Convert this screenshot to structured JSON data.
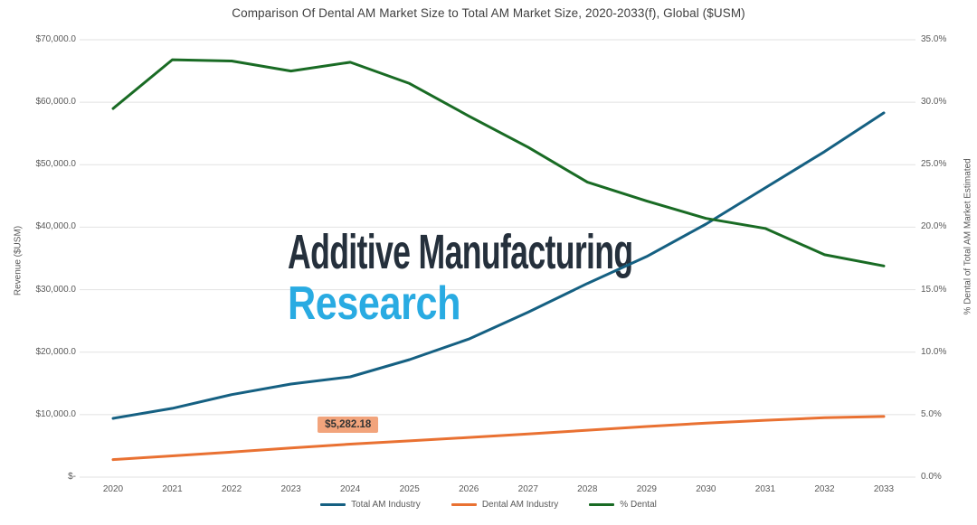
{
  "title": "Comparison Of Dental AM Market Size to Total AM Market Size, 2020-2033(f), Global ($USM)",
  "left_axis": {
    "title": "Revenue ($USM)",
    "ticks": [
      "$70,000.0",
      "$60,000.0",
      "$50,000.0",
      "$40,000.0",
      "$30,000.0",
      "$20,000.0",
      "$10,000.0",
      "$-"
    ]
  },
  "right_axis": {
    "title": "% Dental of Total AM Market Estimated",
    "ticks": [
      "35.0%",
      "30.0%",
      "25.0%",
      "20.0%",
      "15.0%",
      "10.0%",
      "5.0%",
      "0.0%"
    ]
  },
  "x_axis": {
    "labels": [
      "2020",
      "2021",
      "2022",
      "2023",
      "2024",
      "2025",
      "2026",
      "2027",
      "2028",
      "2029",
      "2030",
      "2031",
      "2032",
      "2033"
    ]
  },
  "watermark": {
    "line1": "Additive Manufacturing",
    "line2": "Research",
    "line1_color": "#25303c",
    "line2_color": "#29abe2"
  },
  "annotation": {
    "text": "$5,282.18",
    "year": "2024",
    "series": "Dental AM Industry",
    "bg_color": "#f2a47c"
  },
  "colors": {
    "gridline": "#e2e2e2",
    "axis_text": "#595959",
    "title_text": "#404040"
  },
  "chart_data": {
    "type": "line",
    "title": "Comparison Of Dental AM Market Size to Total AM Market Size, 2020-2033(f), Global ($USM)",
    "categories": [
      2020,
      2021,
      2022,
      2023,
      2024,
      2025,
      2026,
      2027,
      2028,
      2029,
      2030,
      2031,
      2032,
      2033
    ],
    "series": [
      {
        "name": "Total AM Industry",
        "axis": "left",
        "color": "#156082",
        "values": [
          9400,
          11000,
          13200,
          14900,
          16050,
          18800,
          22100,
          26400,
          31000,
          35300,
          40500,
          46300,
          52100,
          58300
        ]
      },
      {
        "name": "Dental AM Industry",
        "axis": "left",
        "color": "#E97132",
        "values": [
          2800,
          3400,
          4000,
          4650,
          5282.18,
          5800,
          6350,
          6900,
          7500,
          8100,
          8650,
          9100,
          9500,
          9700
        ]
      },
      {
        "name": "% Dental",
        "axis": "right",
        "color": "#196B24",
        "values": [
          29.5,
          33.4,
          33.3,
          32.5,
          33.2,
          31.5,
          28.9,
          26.4,
          23.6,
          22.1,
          20.7,
          19.9,
          17.8,
          16.9
        ]
      }
    ],
    "left_ylabel": "Revenue ($USM)",
    "right_ylabel": "% Dental of Total AM Market Estimated",
    "left_ylim": [
      0,
      70000
    ],
    "right_ylim": [
      0,
      35
    ],
    "grid": true,
    "legend_position": "bottom"
  }
}
